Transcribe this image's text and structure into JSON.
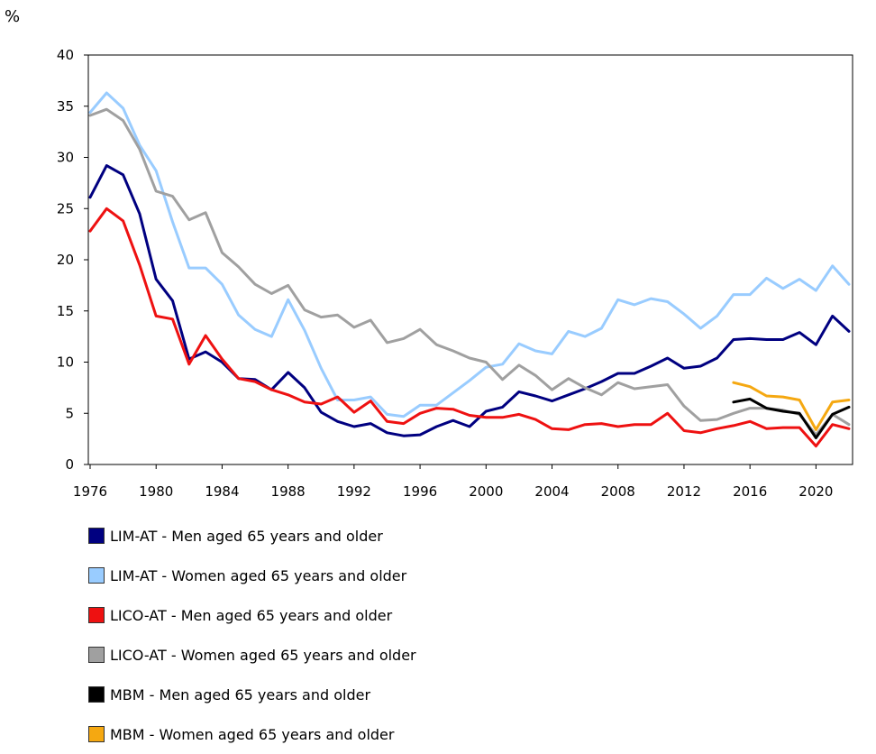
{
  "chart_data": {
    "type": "line",
    "ylabel": "%",
    "ylim": [
      0,
      40
    ],
    "yticks": [
      0,
      5,
      10,
      15,
      20,
      25,
      30,
      35,
      40
    ],
    "xlim": [
      1976,
      2022
    ],
    "xticks": [
      1976,
      1980,
      1984,
      1988,
      1992,
      1996,
      2000,
      2004,
      2008,
      2012,
      2016,
      2020
    ],
    "legend_position": "bottom",
    "grid": false,
    "series": [
      {
        "name": "LIM-AT - Men aged 65 years and older",
        "color": "#000080",
        "x": [
          1976,
          1977,
          1978,
          1979,
          1980,
          1981,
          1982,
          1983,
          1984,
          1985,
          1986,
          1987,
          1988,
          1989,
          1990,
          1991,
          1992,
          1993,
          1994,
          1995,
          1996,
          1997,
          1998,
          1999,
          2000,
          2001,
          2002,
          2003,
          2004,
          2005,
          2006,
          2007,
          2008,
          2009,
          2010,
          2011,
          2012,
          2013,
          2014,
          2015,
          2016,
          2017,
          2018,
          2019,
          2020,
          2021,
          2022
        ],
        "values": [
          26.1,
          29.2,
          28.3,
          24.5,
          18.1,
          16.0,
          10.3,
          11.0,
          10.0,
          8.4,
          8.3,
          7.3,
          9.0,
          7.5,
          5.1,
          4.2,
          3.7,
          4.0,
          3.1,
          2.8,
          2.9,
          3.7,
          4.3,
          3.7,
          5.2,
          5.6,
          7.1,
          6.7,
          6.2,
          6.8,
          7.4,
          8.1,
          8.9,
          8.9,
          9.6,
          10.4,
          9.4,
          9.6,
          10.4,
          12.2,
          12.3,
          12.2,
          12.2,
          12.9,
          11.7,
          14.5,
          13.0
        ]
      },
      {
        "name": "LIM-AT - Women aged 65 years and older",
        "color": "#99CCFF",
        "x": [
          1976,
          1977,
          1978,
          1979,
          1980,
          1981,
          1982,
          1983,
          1984,
          1985,
          1986,
          1987,
          1988,
          1989,
          1990,
          1991,
          1992,
          1993,
          1994,
          1995,
          1996,
          1997,
          1998,
          1999,
          2000,
          2001,
          2002,
          2003,
          2004,
          2005,
          2006,
          2007,
          2008,
          2009,
          2010,
          2011,
          2012,
          2013,
          2014,
          2015,
          2016,
          2017,
          2018,
          2019,
          2020,
          2021,
          2022
        ],
        "values": [
          34.4,
          36.3,
          34.8,
          31.2,
          28.7,
          23.7,
          19.2,
          19.2,
          17.6,
          14.6,
          13.2,
          12.5,
          16.1,
          13.1,
          9.4,
          6.3,
          6.3,
          6.6,
          4.9,
          4.7,
          5.8,
          5.8,
          7.0,
          8.2,
          9.5,
          9.8,
          11.8,
          11.1,
          10.8,
          13.0,
          12.5,
          13.3,
          16.1,
          15.6,
          16.2,
          15.9,
          14.7,
          13.3,
          14.5,
          16.6,
          16.6,
          18.2,
          17.2,
          18.1,
          17.0,
          19.4,
          17.6
        ]
      },
      {
        "name": "LICO-AT - Men aged 65 years and older",
        "color": "#EE1111",
        "x": [
          1976,
          1977,
          1978,
          1979,
          1980,
          1981,
          1982,
          1983,
          1984,
          1985,
          1986,
          1987,
          1988,
          1989,
          1990,
          1991,
          1992,
          1993,
          1994,
          1995,
          1996,
          1997,
          1998,
          1999,
          2000,
          2001,
          2002,
          2003,
          2004,
          2005,
          2006,
          2007,
          2008,
          2009,
          2010,
          2011,
          2012,
          2013,
          2014,
          2015,
          2016,
          2017,
          2018,
          2019,
          2020,
          2021,
          2022
        ],
        "values": [
          22.8,
          25.0,
          23.8,
          19.5,
          14.5,
          14.2,
          9.8,
          12.6,
          10.3,
          8.4,
          8.1,
          7.3,
          6.8,
          6.1,
          5.9,
          6.6,
          5.1,
          6.2,
          4.2,
          4.0,
          5.0,
          5.5,
          5.4,
          4.8,
          4.6,
          4.6,
          4.9,
          4.4,
          3.5,
          3.4,
          3.9,
          4.0,
          3.7,
          3.9,
          3.9,
          5.0,
          3.3,
          3.1,
          3.5,
          3.8,
          4.2,
          3.5,
          3.6,
          3.6,
          1.8,
          3.9,
          3.5
        ]
      },
      {
        "name": "LICO-AT - Women aged 65 years and older",
        "color": "#A0A0A0",
        "x": [
          1976,
          1977,
          1978,
          1979,
          1980,
          1981,
          1982,
          1983,
          1984,
          1985,
          1986,
          1987,
          1988,
          1989,
          1990,
          1991,
          1992,
          1993,
          1994,
          1995,
          1996,
          1997,
          1998,
          1999,
          2000,
          2001,
          2002,
          2003,
          2004,
          2005,
          2006,
          2007,
          2008,
          2009,
          2010,
          2011,
          2012,
          2013,
          2014,
          2015,
          2016,
          2017,
          2018,
          2019,
          2020,
          2021,
          2022
        ],
        "values": [
          34.1,
          34.7,
          33.6,
          30.8,
          26.7,
          26.2,
          23.9,
          24.6,
          20.7,
          19.3,
          17.6,
          16.7,
          17.5,
          15.1,
          14.4,
          14.6,
          13.4,
          14.1,
          11.9,
          12.3,
          13.2,
          11.7,
          11.1,
          10.4,
          10.0,
          8.3,
          9.7,
          8.7,
          7.3,
          8.4,
          7.5,
          6.8,
          8.0,
          7.4,
          7.6,
          7.8,
          5.7,
          4.3,
          4.4,
          5.0,
          5.5,
          5.5,
          5.3,
          4.9,
          2.9,
          4.9,
          3.9
        ]
      },
      {
        "name": "MBM - Men aged 65 years and older",
        "color": "#000000",
        "x": [
          2015,
          2016,
          2017,
          2018,
          2019,
          2020,
          2021,
          2022
        ],
        "values": [
          6.1,
          6.4,
          5.5,
          5.2,
          5.0,
          2.6,
          4.9,
          5.6
        ]
      },
      {
        "name": "MBM - Women aged 65 years and older",
        "color": "#F5A811",
        "x": [
          2015,
          2016,
          2017,
          2018,
          2019,
          2020,
          2021,
          2022
        ],
        "values": [
          8.0,
          7.6,
          6.7,
          6.6,
          6.3,
          3.4,
          6.1,
          6.3
        ]
      }
    ]
  }
}
